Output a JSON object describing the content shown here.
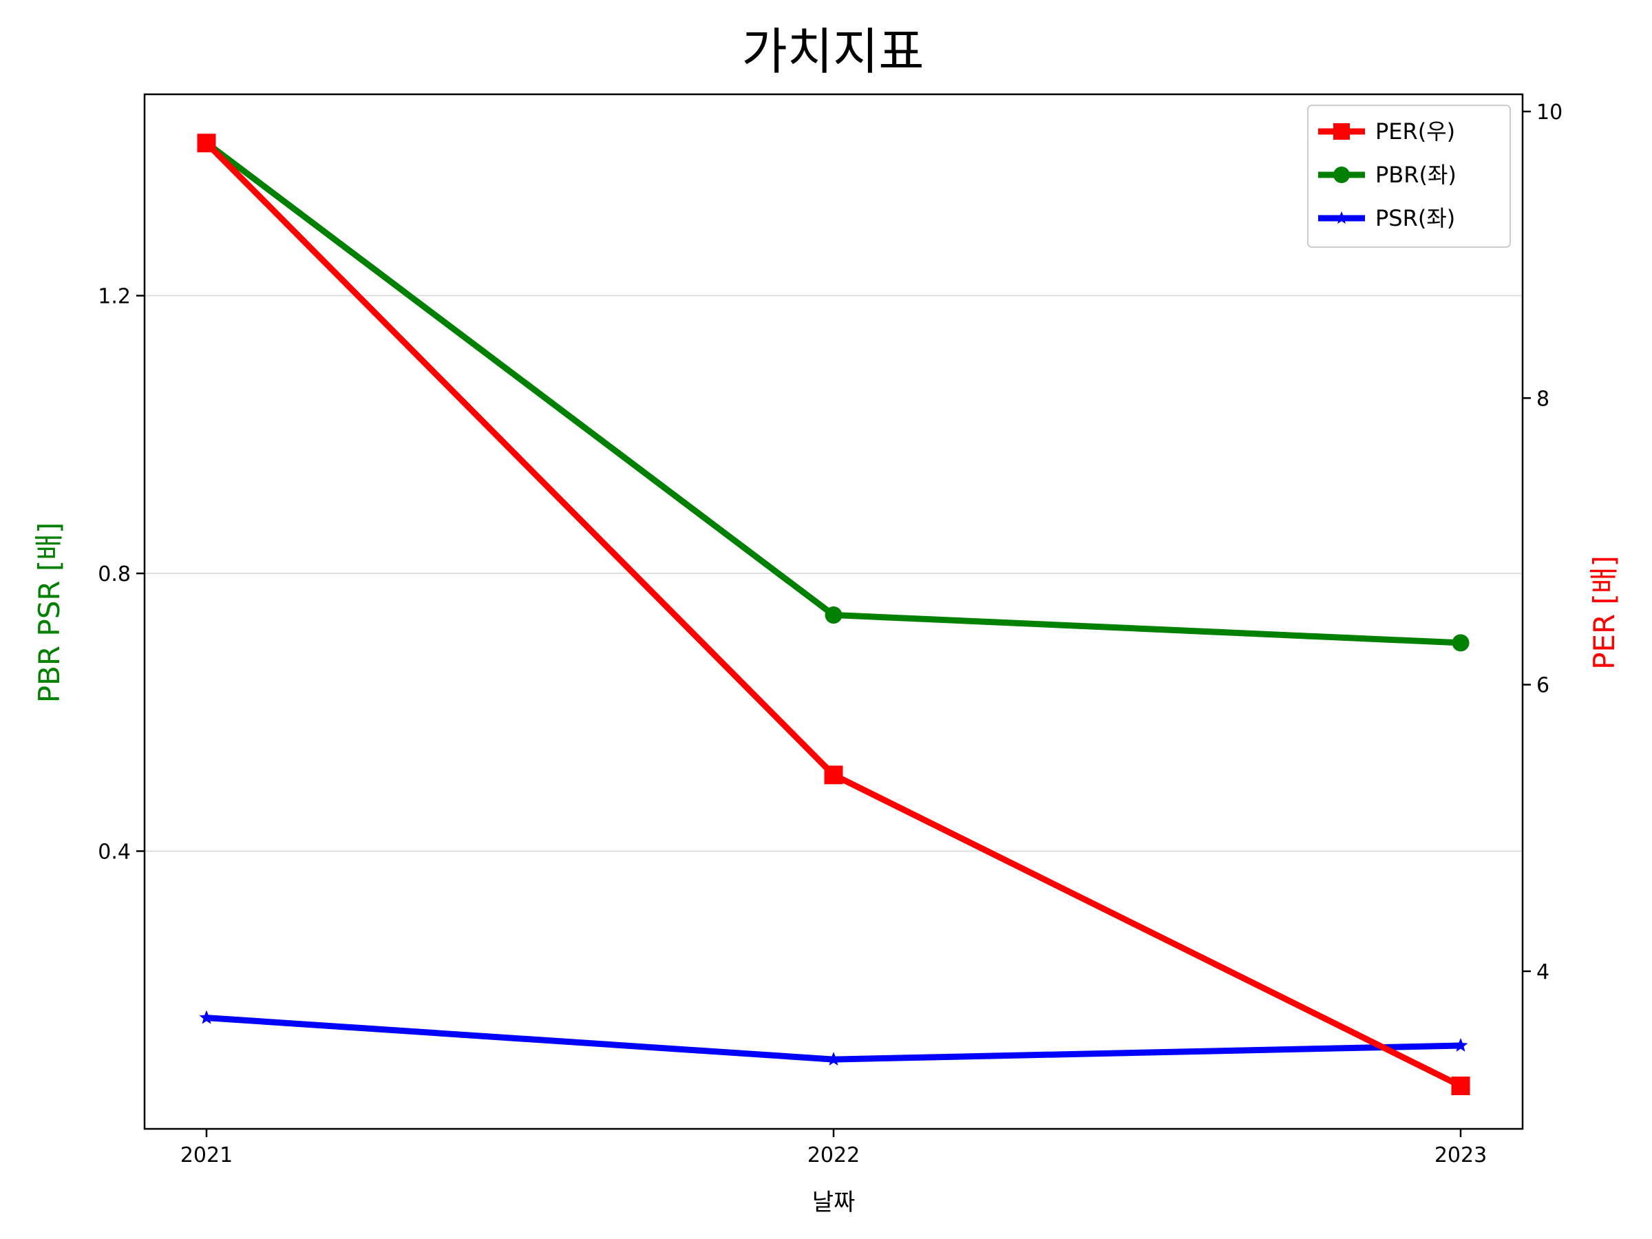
{
  "chart_data": {
    "type": "line",
    "title": "가치지표",
    "xlabel": "날짜",
    "ylabel_left": "PBR PSR [배]",
    "ylabel_right": "PER [배]",
    "categories": [
      "2021",
      "2022",
      "2023"
    ],
    "left_axis": {
      "ylim": [
        0.0,
        1.49
      ],
      "ticks": [
        0.4,
        0.8,
        1.2
      ],
      "tick_labels": [
        "0.4",
        "0.8",
        "1.2"
      ],
      "color": "#008000"
    },
    "right_axis": {
      "ylim": [
        2.9,
        10.12
      ],
      "ticks": [
        4,
        6,
        8,
        10
      ],
      "tick_labels": [
        "4",
        "6",
        "8",
        "10"
      ],
      "color": "#ff0000"
    },
    "grid": "horizontal, left axis",
    "legend_position": "top-right",
    "series": [
      {
        "name": "PER(우)",
        "axis": "right",
        "values": [
          9.78,
          5.37,
          3.2
        ],
        "color": "#ff0000",
        "marker": "square"
      },
      {
        "name": "PBR(좌)",
        "axis": "left",
        "values": [
          1.42,
          0.74,
          0.7
        ],
        "color": "#008000",
        "marker": "circle"
      },
      {
        "name": "PSR(좌)",
        "axis": "left",
        "values": [
          0.16,
          0.1,
          0.12
        ],
        "color": "#0000ff",
        "marker": "star"
      }
    ]
  }
}
